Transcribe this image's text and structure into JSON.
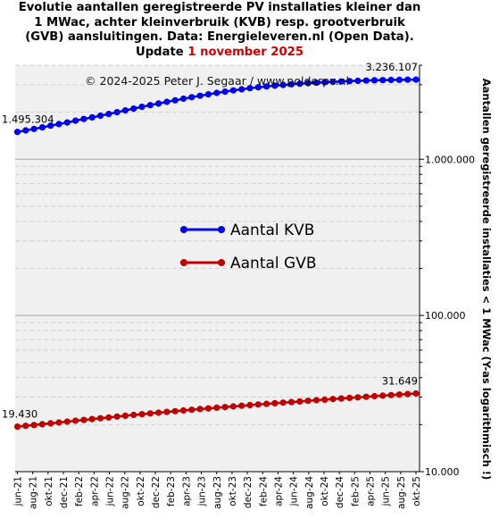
{
  "title": {
    "line1": "Evolutie aantallen geregistreerde PV installaties kleiner dan",
    "line2": "1 MWac, achter kleinverbruik (KVB) resp. grootverbruik",
    "line3": "(GVB) aansluitingen. Data: Energieleveren.nl (Open Data).",
    "line4_prefix": "Update ",
    "line4_date": "1 november 2025"
  },
  "copyright": "© 2024-2025  Peter J. Segaar / www.polderpv.nl",
  "colors": {
    "kvb": "#0000ee",
    "gvb": "#c00000",
    "plot_bg": "#f0f0f0",
    "update": "#d00000"
  },
  "chart_data": {
    "type": "line",
    "ylabel": "Aantallen geregistreerde installaties < 1 MWac (Y-as logarithmisch !)",
    "yscale": "log",
    "ylim": [
      10000,
      4000000
    ],
    "y_ticks": [
      {
        "value": 10000,
        "label": "10.000"
      },
      {
        "value": 100000,
        "label": "100.000"
      },
      {
        "value": 1000000,
        "label": "1.000.000"
      }
    ],
    "x_labels": [
      "jun-21",
      "aug-21",
      "okt-21",
      "dec-21",
      "feb-22",
      "apr-22",
      "jun-22",
      "aug-22",
      "okt-22",
      "dec-22",
      "feb-23",
      "apr-23",
      "jun-23",
      "aug-23",
      "okt-23",
      "dec-23",
      "feb-24",
      "apr-24",
      "jun-24",
      "aug-24",
      "okt-24",
      "dec-24",
      "feb-25",
      "apr-25",
      "jun-25",
      "aug-25",
      "okt-25"
    ],
    "legend_position": "center-left",
    "grid": true,
    "series": [
      {
        "name": "Aantal KVB",
        "color": "#0000ee",
        "start_label": "1.495.304",
        "end_label": "3.236.107",
        "values": [
          1495304,
          1530000,
          1565000,
          1600000,
          1640000,
          1680000,
          1720000,
          1765000,
          1810000,
          1855000,
          1900000,
          1950000,
          2000000,
          2055000,
          2110000,
          2165000,
          2220000,
          2275000,
          2330000,
          2385000,
          2440000,
          2495000,
          2550000,
          2605000,
          2660000,
          2710000,
          2760000,
          2805000,
          2850000,
          2890000,
          2925000,
          2960000,
          2990000,
          3020000,
          3045000,
          3070000,
          3090000,
          3110000,
          3130000,
          3148000,
          3163000,
          3177000,
          3190000,
          3200000,
          3210000,
          3218000,
          3225000,
          3232000,
          3236107
        ]
      },
      {
        "name": "Aantal GVB",
        "color": "#c00000",
        "start_label": "19.430",
        "end_label": "31.649",
        "values": [
          19430,
          19650,
          19880,
          20120,
          20380,
          20640,
          20900,
          21170,
          21440,
          21710,
          21980,
          22250,
          22520,
          22790,
          23060,
          23330,
          23600,
          23860,
          24120,
          24380,
          24640,
          24900,
          25160,
          25410,
          25660,
          25910,
          26160,
          26410,
          26660,
          26910,
          27160,
          27410,
          27660,
          27910,
          28160,
          28410,
          28660,
          28910,
          29160,
          29410,
          29660,
          29910,
          30160,
          30410,
          30660,
          30910,
          31160,
          31400,
          31649
        ]
      }
    ]
  }
}
